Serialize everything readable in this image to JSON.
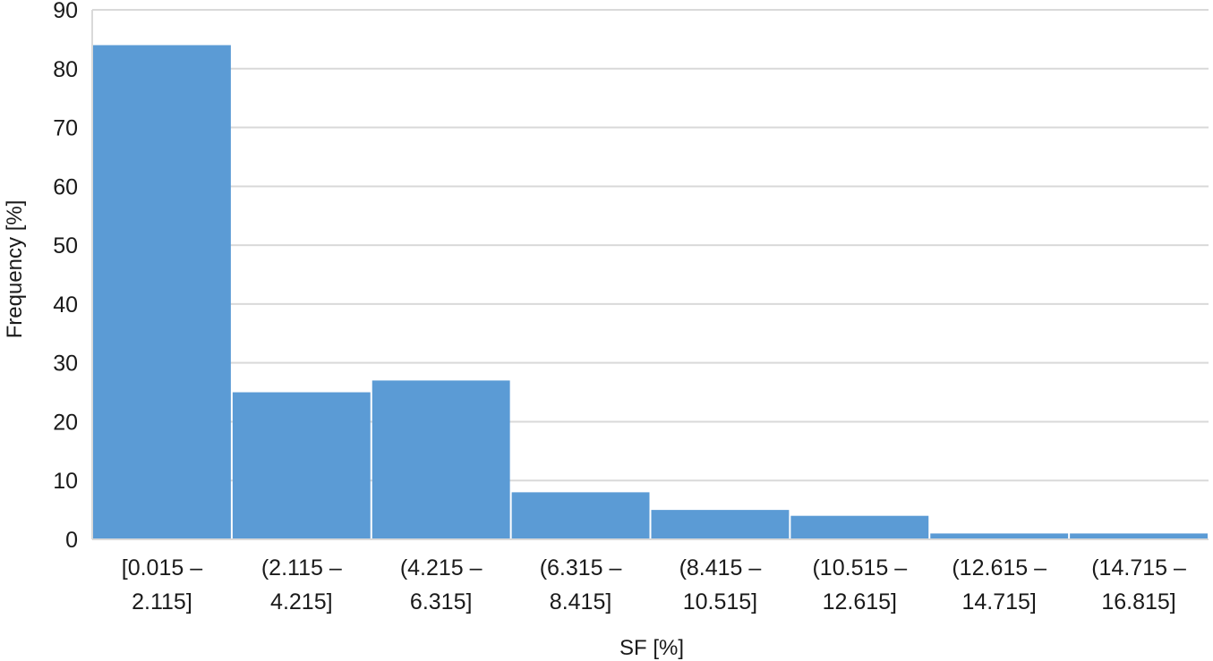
{
  "chart_data": {
    "type": "bar",
    "categories": [
      [
        "[0.015 –",
        "2.115]"
      ],
      [
        "(2.115 –",
        "4.215]"
      ],
      [
        "(4.215 –",
        "6.315]"
      ],
      [
        "(6.315 –",
        "8.415]"
      ],
      [
        "(8.415 –",
        "10.515]"
      ],
      [
        "(10.515 –",
        "12.615]"
      ],
      [
        "(12.615 –",
        "14.715]"
      ],
      [
        "(14.715 –",
        "16.815]"
      ]
    ],
    "values": [
      84,
      25,
      27,
      8,
      5,
      4,
      1,
      1
    ],
    "xlabel": "SF [%]",
    "ylabel": "Frequency [%]",
    "ylim": [
      0,
      90
    ],
    "yticks": [
      0,
      10,
      20,
      30,
      40,
      50,
      60,
      70,
      80,
      90
    ],
    "grid": true,
    "bar_color": "#5b9bd5",
    "grid_color": "#d9d9d9"
  }
}
